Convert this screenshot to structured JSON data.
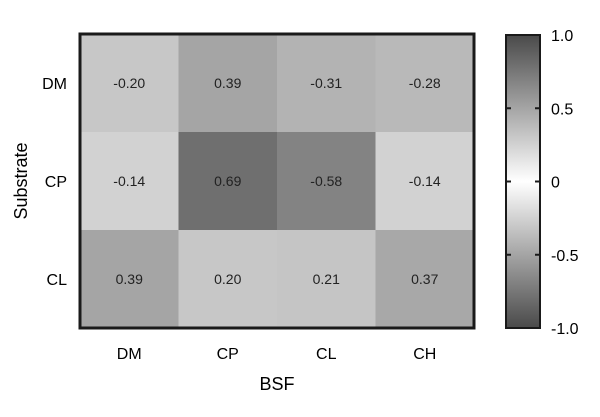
{
  "chart_data": {
    "type": "heatmap",
    "title": "",
    "xlabel": "BSF",
    "ylabel": "Substrate",
    "x_categories": [
      "DM",
      "CP",
      "CL",
      "CH"
    ],
    "y_categories": [
      "DM",
      "CP",
      "CL"
    ],
    "values": [
      [
        -0.2,
        0.39,
        -0.31,
        -0.28
      ],
      [
        -0.14,
        0.69,
        -0.58,
        -0.14
      ],
      [
        0.39,
        0.2,
        0.21,
        0.37
      ]
    ],
    "value_labels": [
      [
        "-0.20",
        "0.39",
        "-0.31",
        "-0.28"
      ],
      [
        "-0.14",
        "0.69",
        "-0.58",
        "-0.14"
      ],
      [
        "0.39",
        "0.20",
        "0.21",
        "0.37"
      ]
    ],
    "colorbar": {
      "range": [
        -1.0,
        1.0
      ],
      "ticks": [
        1.0,
        0.5,
        0,
        -0.5,
        -1.0
      ],
      "tick_labels": [
        "1.0",
        "0.5",
        "0",
        "-0.5",
        "-1.0"
      ],
      "colormap": "grayscale by magnitude: white at 0, dark gray at ±1",
      "color_zero": "#ffffff",
      "color_extreme": "#4a4a4a"
    },
    "legend": "right"
  }
}
